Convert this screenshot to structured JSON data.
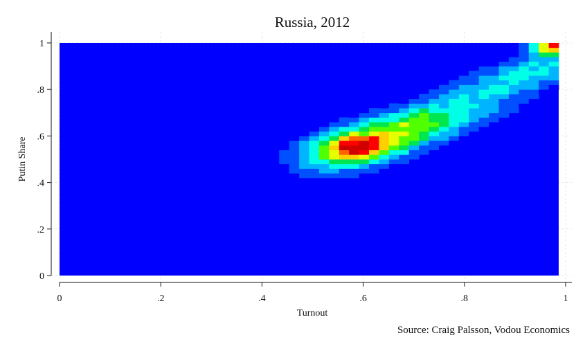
{
  "chart_data": {
    "type": "heatmap",
    "title": "Russia, 2012",
    "xlabel": "Turnout",
    "ylabel": "Putin Share",
    "source": "Source: Craig Palsson, Vodou Economics",
    "xlim": [
      0,
      1
    ],
    "ylim": [
      0,
      1
    ],
    "x_ticks": [
      0,
      0.2,
      0.4,
      0.6,
      0.8,
      1
    ],
    "x_tick_labels": [
      "0",
      ".2",
      ".4",
      ".6",
      ".8",
      "1"
    ],
    "y_ticks": [
      0,
      0.2,
      0.4,
      0.6,
      0.8,
      1
    ],
    "y_tick_labels": [
      "0",
      ".2",
      ".4",
      ".6",
      ".8",
      "1"
    ],
    "grid": true,
    "colorscale": [
      "#0000ff",
      "#0050ff",
      "#00b4ff",
      "#00ffe6",
      "#00e650",
      "#50ff00",
      "#e6ff00",
      "#ffd000",
      "#ff6400",
      "#ff0000",
      "#d00000"
    ],
    "background_color": "#0000ff",
    "density_peaks": [
      {
        "x": 0.59,
        "y": 0.555,
        "level": 1.0
      },
      {
        "x": 0.98,
        "y": 0.99,
        "level": 0.85
      }
    ]
  }
}
